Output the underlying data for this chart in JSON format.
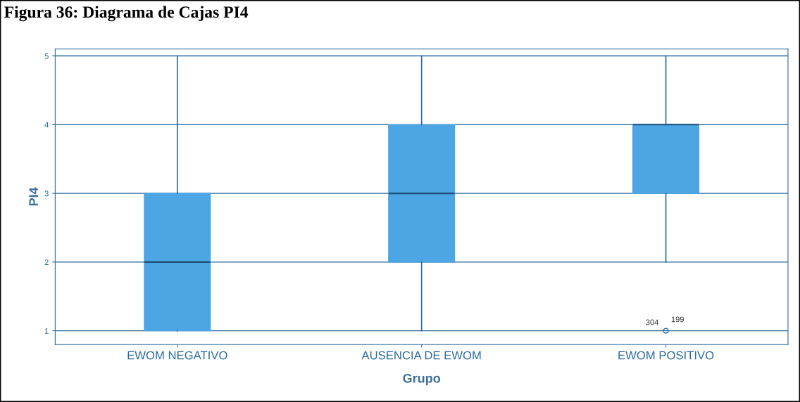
{
  "chart_data": {
    "type": "box",
    "title": "Figura 36: Diagrama de Cajas PI4",
    "xlabel": "Grupo",
    "ylabel": "PI4",
    "categories": [
      "EWOM NEGATIVO",
      "AUSENCIA DE EWOM",
      "EWOM POSITIVO"
    ],
    "series": [
      {
        "color": "#4ba6e3",
        "boxes": [
          {
            "low": 1,
            "q1": 1,
            "median": 2,
            "q3": 3,
            "high": 5
          },
          {
            "low": 1,
            "q1": 2,
            "median": 3,
            "q3": 4,
            "high": 5
          },
          {
            "low": 2,
            "q1": 3,
            "median": 4,
            "q3": 4,
            "high": 5,
            "outliers": [
              1
            ]
          }
        ]
      }
    ],
    "annotations": [
      "304",
      "199"
    ],
    "ylim": [
      0.8,
      5.1
    ],
    "yticks": [
      1,
      2,
      3,
      4,
      5
    ],
    "grid": "y"
  }
}
